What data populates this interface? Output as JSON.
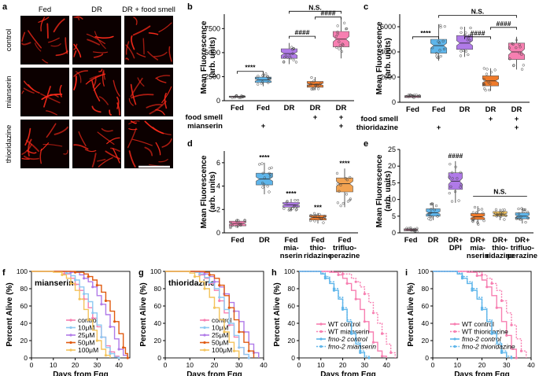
{
  "figure": {
    "panel_letters": [
      "a",
      "b",
      "c",
      "d",
      "e",
      "f",
      "g",
      "h",
      "i"
    ]
  },
  "micro": {
    "columns": [
      "Fed",
      "DR",
      "DR + food smell"
    ],
    "rows": [
      "control",
      "mianserin",
      "thioridazine"
    ],
    "worm_color": "#ff2a1a",
    "background": "#0c0000"
  },
  "colors": {
    "pink": "#f77fb1",
    "blue": "#5eb5ea",
    "violet": "#b07ae8",
    "orange": "#ef7a2a",
    "peach": "#f2a250",
    "yellow": "#f4c35b",
    "red": "#e8322a",
    "lightblue": "#8ec9f2",
    "darkorange": "#e05a10",
    "sig_text": "#000000"
  },
  "chart_data": [
    {
      "panel": "b",
      "type": "box",
      "ylabel_line1": "Mean Fluorescence",
      "ylabel_line2": "(arb. units)",
      "ylim": [
        0,
        9000
      ],
      "yticks": [
        0,
        2500,
        5000,
        7500
      ],
      "categories": [
        "Fed",
        "Fed",
        "DR",
        "DR",
        "DR"
      ],
      "row_labels": [
        "food smell",
        "mianserin"
      ],
      "markers": [
        [
          "",
          "",
          "",
          "+",
          "+"
        ],
        [
          "",
          "+",
          "",
          "",
          "+"
        ]
      ],
      "colors": [
        "#f77fb1",
        "#5eb5ea",
        "#b07ae8",
        "#ef7a2a",
        "#f77fb1"
      ],
      "boxes": [
        {
          "q1": 350,
          "med": 420,
          "q3": 480,
          "min": 300,
          "max": 540
        },
        {
          "q1": 1900,
          "med": 2150,
          "q3": 2450,
          "min": 1500,
          "max": 2900
        },
        {
          "q1": 4400,
          "med": 4900,
          "q3": 5400,
          "min": 3800,
          "max": 6000
        },
        {
          "q1": 1400,
          "med": 1700,
          "q3": 2000,
          "min": 1100,
          "max": 2450
        },
        {
          "q1": 5600,
          "med": 6400,
          "q3": 7200,
          "min": 4400,
          "max": 8600
        }
      ],
      "brackets": [
        {
          "from": 0,
          "to": 1,
          "level": 3050,
          "label": "****"
        },
        {
          "from": 2,
          "to": 3,
          "level": 6700,
          "label": "####"
        },
        {
          "from": 3,
          "to": 4,
          "level": 8700,
          "label": "####"
        },
        {
          "from": 2,
          "to": 4,
          "level": 9300,
          "label": "N.S."
        }
      ]
    },
    {
      "panel": "c",
      "type": "box",
      "ylabel_line1": "Mean Fluorescence",
      "ylabel_line2": "(arb. units)",
      "ylim": [
        0,
        7000
      ],
      "yticks": [
        0,
        2000,
        4000,
        6000
      ],
      "categories": [
        "Fed",
        "Fed",
        "DR",
        "DR",
        "DR"
      ],
      "row_labels": [
        "food smell",
        "thioridazine"
      ],
      "markers": [
        [
          "",
          "",
          "",
          "+",
          "+"
        ],
        [
          "",
          "+",
          "",
          "",
          "+"
        ]
      ],
      "colors": [
        "#f77fb1",
        "#5eb5ea",
        "#b07ae8",
        "#ef7a2a",
        "#f77fb1"
      ],
      "boxes": [
        {
          "q1": 380,
          "med": 450,
          "q3": 520,
          "min": 320,
          "max": 600
        },
        {
          "q1": 3900,
          "med": 4500,
          "q3": 5000,
          "min": 3300,
          "max": 6200
        },
        {
          "q1": 4200,
          "med": 4700,
          "q3": 5300,
          "min": 3600,
          "max": 6000
        },
        {
          "q1": 1300,
          "med": 1700,
          "q3": 2100,
          "min": 900,
          "max": 2700
        },
        {
          "q1": 3400,
          "med": 4000,
          "q3": 4700,
          "min": 2600,
          "max": 5200
        }
      ],
      "brackets": [
        {
          "from": 0,
          "to": 1,
          "level": 5200,
          "label": "****"
        },
        {
          "from": 2,
          "to": 3,
          "level": 5200,
          "label": "####"
        },
        {
          "from": 3,
          "to": 4,
          "level": 5950,
          "label": "####"
        },
        {
          "from": 1,
          "to": 4,
          "level": 6900,
          "label": "N.S."
        }
      ]
    },
    {
      "panel": "d",
      "type": "box",
      "ylabel_line1": "Mean Fluorescence",
      "ylabel_line2": "(arb. units)",
      "ylim": [
        0,
        7
      ],
      "yticks": [
        0,
        2,
        4,
        6
      ],
      "categories": [
        "Fed",
        "DR",
        "Fed\nmia-\nnserin",
        "Fed\nthio-\nridazine",
        "Fed\ntrifluo-\nperazine"
      ],
      "colors": [
        "#f77fb1",
        "#5eb5ea",
        "#b07ae8",
        "#ef7a2a",
        "#f2a250"
      ],
      "boxes": [
        {
          "q1": 0.6,
          "med": 0.8,
          "q3": 1.0,
          "min": 0.4,
          "max": 1.2
        },
        {
          "q1": 4.1,
          "med": 4.6,
          "q3": 5.1,
          "min": 3.3,
          "max": 6.0
        },
        {
          "q1": 2.2,
          "med": 2.4,
          "q3": 2.6,
          "min": 1.9,
          "max": 2.9
        },
        {
          "q1": 1.1,
          "med": 1.3,
          "q3": 1.5,
          "min": 0.8,
          "max": 1.7
        },
        {
          "q1": 3.5,
          "med": 4.2,
          "q3": 4.7,
          "min": 2.2,
          "max": 5.5
        }
      ],
      "stars": [
        "",
        "****",
        "****",
        "***",
        "****"
      ]
    },
    {
      "panel": "e",
      "type": "box",
      "ylabel_line1": "Mean Fluorescence",
      "ylabel_line2": "(arb. units)",
      "ylim": [
        0,
        25
      ],
      "yticks": [
        0,
        5,
        10,
        15,
        20,
        25
      ],
      "categories": [
        "Fed",
        "DR",
        "DR+\nDPI",
        "DR+\nmia-\nnserin",
        "DR+\nthio-\nridazine",
        "DR+\ntrifluo-\nperazine"
      ],
      "colors": [
        "#f77fb1",
        "#5eb5ea",
        "#b07ae8",
        "#ef7a2a",
        "#f4c35b",
        "#5eb5ea"
      ],
      "boxes": [
        {
          "q1": 0.6,
          "med": 0.9,
          "q3": 1.2,
          "min": 0.4,
          "max": 1.5
        },
        {
          "q1": 5.0,
          "med": 6.0,
          "q3": 7.2,
          "min": 3.8,
          "max": 9.0
        },
        {
          "q1": 13.0,
          "med": 15.5,
          "q3": 18.0,
          "min": 9.0,
          "max": 21.5
        },
        {
          "q1": 4.0,
          "med": 4.8,
          "q3": 5.8,
          "min": 2.5,
          "max": 8.0
        },
        {
          "q1": 5.0,
          "med": 5.6,
          "q3": 6.4,
          "min": 3.8,
          "max": 7.2
        },
        {
          "q1": 4.2,
          "med": 5.0,
          "q3": 6.0,
          "min": 2.8,
          "max": 7.5
        }
      ],
      "stars": [
        "",
        "",
        "####",
        "",
        "",
        ""
      ],
      "ns_bracket": {
        "from": 3,
        "to": 5,
        "level": 11,
        "label": "N.S."
      }
    },
    {
      "panel": "f",
      "type": "line",
      "title": "mianserin",
      "xlabel": "Days from Egg",
      "ylabel": "Percent Alive (%)",
      "xlim": [
        0,
        45
      ],
      "xticks": [
        0,
        10,
        20,
        30,
        40
      ],
      "ylim": [
        0,
        100
      ],
      "yticks": [
        0,
        20,
        40,
        60,
        80,
        100
      ],
      "series": [
        {
          "name": "control",
          "color": "#f77fb1",
          "x": [
            0,
            12,
            15,
            18,
            20,
            22,
            24,
            26,
            28,
            30,
            32,
            34,
            36,
            38,
            40
          ],
          "y": [
            100,
            100,
            97,
            92,
            85,
            78,
            68,
            58,
            46,
            36,
            24,
            14,
            7,
            2,
            0
          ]
        },
        {
          "name": "10μM",
          "color": "#8ec9f2",
          "x": [
            0,
            12,
            16,
            18,
            20,
            22,
            24,
            26,
            28,
            30,
            32,
            34,
            36,
            38,
            40
          ],
          "y": [
            100,
            100,
            98,
            95,
            90,
            82,
            74,
            65,
            52,
            38,
            24,
            12,
            5,
            1,
            0
          ]
        },
        {
          "name": "25μM",
          "color": "#b07ae8",
          "x": [
            0,
            14,
            18,
            22,
            24,
            26,
            28,
            30,
            32,
            34,
            36,
            38,
            40,
            42,
            44
          ],
          "y": [
            100,
            100,
            99,
            96,
            92,
            88,
            82,
            72,
            62,
            50,
            36,
            22,
            10,
            3,
            0
          ]
        },
        {
          "name": "50μM",
          "color": "#e05a10",
          "x": [
            0,
            16,
            20,
            24,
            26,
            28,
            30,
            32,
            34,
            36,
            38,
            40,
            42,
            43,
            44
          ],
          "y": [
            100,
            100,
            99,
            97,
            94,
            90,
            84,
            76,
            66,
            54,
            42,
            28,
            12,
            5,
            0
          ]
        },
        {
          "name": "100μM",
          "color": "#f4c35b",
          "x": [
            0,
            10,
            14,
            16,
            18,
            20,
            22,
            24,
            26,
            28,
            30,
            32,
            34,
            36
          ],
          "y": [
            100,
            99,
            96,
            92,
            86,
            78,
            68,
            56,
            44,
            32,
            20,
            10,
            3,
            0
          ]
        }
      ]
    },
    {
      "panel": "g",
      "type": "line",
      "title": "thioridazine",
      "xlabel": "Days from Egg",
      "ylabel": "Percent Alive (%)",
      "xlim": [
        0,
        40
      ],
      "xticks": [
        0,
        10,
        20,
        30,
        40
      ],
      "ylim": [
        0,
        100
      ],
      "yticks": [
        0,
        20,
        40,
        60,
        80,
        100
      ],
      "series": [
        {
          "name": "control",
          "color": "#f77fb1",
          "x": [
            0,
            12,
            14,
            16,
            18,
            20,
            22,
            24,
            26,
            28,
            30,
            32,
            34
          ],
          "y": [
            100,
            99,
            96,
            92,
            86,
            78,
            66,
            52,
            38,
            24,
            12,
            4,
            0
          ]
        },
        {
          "name": "10μM",
          "color": "#8ec9f2",
          "x": [
            0,
            12,
            14,
            16,
            18,
            20,
            22,
            24,
            26,
            28,
            30,
            32,
            34
          ],
          "y": [
            100,
            99,
            97,
            93,
            87,
            80,
            70,
            56,
            40,
            26,
            12,
            4,
            0
          ]
        },
        {
          "name": "25μM",
          "color": "#b07ae8",
          "x": [
            0,
            14,
            16,
            18,
            20,
            22,
            24,
            26,
            28,
            30,
            32,
            34,
            36,
            38
          ],
          "y": [
            100,
            99,
            97,
            94,
            88,
            82,
            74,
            64,
            54,
            42,
            30,
            16,
            6,
            0
          ]
        },
        {
          "name": "50μM",
          "color": "#e05a10",
          "x": [
            0,
            16,
            18,
            20,
            22,
            24,
            26,
            28,
            30,
            32,
            34,
            36
          ],
          "y": [
            100,
            99,
            96,
            92,
            84,
            72,
            58,
            44,
            30,
            18,
            8,
            0
          ]
        },
        {
          "name": "100μM",
          "color": "#f4c35b",
          "x": [
            0,
            10,
            12,
            14,
            16,
            18,
            20,
            22,
            24,
            26,
            28,
            30
          ],
          "y": [
            100,
            98,
            94,
            88,
            80,
            70,
            58,
            44,
            30,
            18,
            8,
            0
          ]
        }
      ]
    },
    {
      "panel": "h",
      "type": "line",
      "xlabel": "Days from Egg",
      "ylabel": "Percent Alive (%)",
      "xlim": [
        0,
        45
      ],
      "xticks": [
        0,
        10,
        20,
        30,
        40
      ],
      "ylim": [
        0,
        100
      ],
      "yticks": [
        0,
        20,
        40,
        60,
        80,
        100
      ],
      "series": [
        {
          "name": "WT control",
          "italic": false,
          "dashed": false,
          "color": "#f77fb1",
          "x": [
            0,
            14,
            18,
            20,
            22,
            24,
            26,
            28,
            30,
            32,
            34,
            36,
            38,
            40
          ],
          "y": [
            100,
            99,
            96,
            92,
            86,
            78,
            68,
            56,
            42,
            30,
            18,
            8,
            2,
            0
          ]
        },
        {
          "name": "WT mianserin",
          "italic": false,
          "dashed": true,
          "color": "#f77fb1",
          "x": [
            0,
            16,
            20,
            24,
            26,
            28,
            30,
            32,
            34,
            36,
            38,
            40,
            42,
            44
          ],
          "y": [
            100,
            99,
            97,
            92,
            88,
            82,
            74,
            64,
            52,
            40,
            28,
            16,
            6,
            0
          ]
        },
        {
          "name": "fmo-2 control",
          "italic": true,
          "dashed": false,
          "color": "#5eb5ea",
          "x": [
            0,
            10,
            12,
            14,
            16,
            18,
            20,
            22,
            24,
            26,
            28,
            30
          ],
          "y": [
            100,
            97,
            92,
            86,
            78,
            68,
            56,
            42,
            28,
            16,
            6,
            0
          ]
        },
        {
          "name": "fmo-2 mianserin",
          "italic": true,
          "dashed": true,
          "color": "#5eb5ea",
          "x": [
            0,
            10,
            12,
            14,
            16,
            18,
            20,
            22,
            24,
            26,
            28,
            30,
            32
          ],
          "y": [
            100,
            98,
            94,
            88,
            80,
            70,
            58,
            44,
            30,
            18,
            8,
            2,
            0
          ]
        }
      ]
    },
    {
      "panel": "i",
      "type": "line",
      "xlabel": "Days from Egg",
      "ylabel": "Percent Alive (%)",
      "xlim": [
        0,
        40
      ],
      "xticks": [
        0,
        10,
        20,
        30,
        40
      ],
      "ylim": [
        0,
        100
      ],
      "yticks": [
        0,
        20,
        40,
        60,
        80,
        100
      ],
      "series": [
        {
          "name": "WT control",
          "italic": false,
          "dashed": false,
          "color": "#f77fb1",
          "x": [
            0,
            14,
            18,
            20,
            22,
            24,
            26,
            28,
            30,
            32,
            34
          ],
          "y": [
            100,
            99,
            95,
            90,
            82,
            72,
            58,
            42,
            26,
            10,
            0
          ]
        },
        {
          "name": "WT thioridazine",
          "italic": false,
          "dashed": true,
          "color": "#f77fb1",
          "x": [
            0,
            16,
            20,
            22,
            24,
            26,
            28,
            30,
            32,
            34,
            36,
            38
          ],
          "y": [
            100,
            99,
            96,
            92,
            86,
            78,
            66,
            52,
            38,
            22,
            8,
            0
          ]
        },
        {
          "name": "fmo-2 control",
          "italic": true,
          "dashed": false,
          "color": "#5eb5ea",
          "x": [
            0,
            10,
            12,
            14,
            16,
            18,
            20,
            22,
            24,
            26,
            28,
            30
          ],
          "y": [
            100,
            97,
            92,
            86,
            78,
            68,
            56,
            42,
            28,
            16,
            6,
            0
          ]
        },
        {
          "name": "fmo-2 thioridazine",
          "italic": true,
          "dashed": true,
          "color": "#5eb5ea",
          "x": [
            0,
            10,
            12,
            14,
            16,
            18,
            20,
            22,
            24,
            26,
            28,
            30,
            32
          ],
          "y": [
            100,
            98,
            94,
            88,
            80,
            70,
            58,
            44,
            30,
            18,
            8,
            2,
            0
          ]
        }
      ]
    }
  ]
}
